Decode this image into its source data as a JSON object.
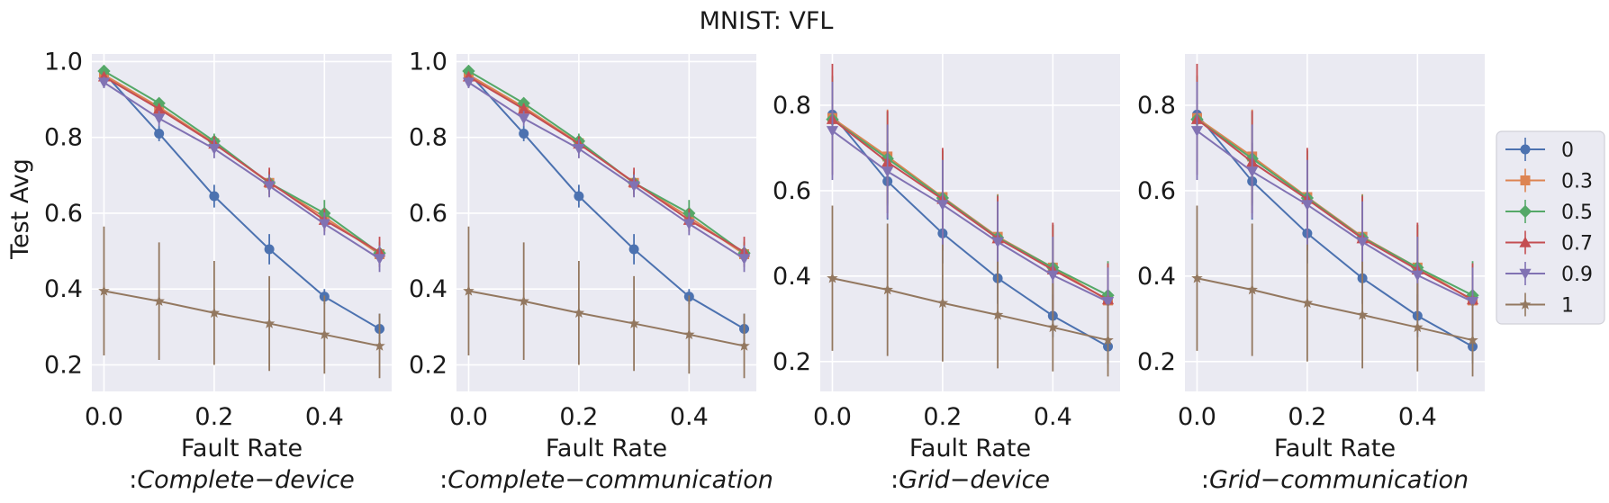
{
  "suptitle": "MNIST: VFL",
  "ylabel": "Test Avg",
  "legend": {
    "entries": [
      {
        "label": "0",
        "color": "#4c72b0",
        "marker": "circle"
      },
      {
        "label": "0.3",
        "color": "#dd8452",
        "marker": "square"
      },
      {
        "label": "0.5",
        "color": "#55a868",
        "marker": "diamond"
      },
      {
        "label": "0.7",
        "color": "#c44e52",
        "marker": "triangle-up"
      },
      {
        "label": "0.9",
        "color": "#8172b3",
        "marker": "triangle-down"
      },
      {
        "label": "1",
        "color": "#937860",
        "marker": "star"
      }
    ]
  },
  "chart_data": [
    {
      "type": "line",
      "xlabel": "Fault Rate",
      "subtitle_prefix": ":",
      "subtitle_italic": "Complete−device",
      "x": [
        0.0,
        0.1,
        0.2,
        0.3,
        0.4,
        0.5
      ],
      "xticks": [
        0.0,
        0.2,
        0.4
      ],
      "xtick_labels": [
        "0.0",
        "0.2",
        "0.4"
      ],
      "xlim": [
        -0.022,
        0.522
      ],
      "ylim": [
        0.13,
        1.02
      ],
      "yticks": [
        0.2,
        0.4,
        0.6,
        0.8,
        1.0
      ],
      "ytick_labels": [
        "0.2",
        "0.4",
        "0.6",
        "0.8",
        "1.0"
      ],
      "series": [
        {
          "name": "0",
          "values": [
            0.97,
            0.81,
            0.645,
            0.505,
            0.38,
            0.295
          ],
          "errors": [
            0.015,
            0.02,
            0.03,
            0.04,
            0.02,
            0.04
          ]
        },
        {
          "name": "0.3",
          "values": [
            0.965,
            0.88,
            0.785,
            0.68,
            0.59,
            0.492
          ],
          "errors": [
            0.01,
            0.015,
            0.02,
            0.03,
            0.025,
            0.03
          ]
        },
        {
          "name": "0.5",
          "values": [
            0.975,
            0.89,
            0.79,
            0.68,
            0.6,
            0.495
          ],
          "errors": [
            0.01,
            0.015,
            0.02,
            0.03,
            0.035,
            0.03
          ]
        },
        {
          "name": "0.7",
          "values": [
            0.96,
            0.875,
            0.783,
            0.682,
            0.582,
            0.498
          ],
          "errors": [
            0.01,
            0.015,
            0.02,
            0.038,
            0.03,
            0.04
          ]
        },
        {
          "name": "0.9",
          "values": [
            0.945,
            0.85,
            0.77,
            0.672,
            0.572,
            0.48
          ],
          "errors": [
            0.015,
            0.02,
            0.025,
            0.03,
            0.03,
            0.035
          ]
        },
        {
          "name": "1",
          "values": [
            0.395,
            0.368,
            0.337,
            0.309,
            0.28,
            0.25
          ],
          "errors": [
            0.17,
            0.155,
            0.137,
            0.125,
            0.103,
            0.085
          ]
        }
      ]
    },
    {
      "type": "line",
      "xlabel": "Fault Rate",
      "subtitle_prefix": ":",
      "subtitle_italic": "Complete−communication",
      "x": [
        0.0,
        0.1,
        0.2,
        0.3,
        0.4,
        0.5
      ],
      "xticks": [
        0.0,
        0.2,
        0.4
      ],
      "xtick_labels": [
        "0.0",
        "0.2",
        "0.4"
      ],
      "xlim": [
        -0.022,
        0.522
      ],
      "ylim": [
        0.13,
        1.02
      ],
      "yticks": [
        0.2,
        0.4,
        0.6,
        0.8,
        1.0
      ],
      "ytick_labels": [
        "0.2",
        "0.4",
        "0.6",
        "0.8",
        "1.0"
      ],
      "series": [
        {
          "name": "0",
          "values": [
            0.97,
            0.81,
            0.645,
            0.505,
            0.38,
            0.295
          ],
          "errors": [
            0.015,
            0.02,
            0.03,
            0.04,
            0.02,
            0.04
          ]
        },
        {
          "name": "0.3",
          "values": [
            0.965,
            0.88,
            0.785,
            0.68,
            0.59,
            0.492
          ],
          "errors": [
            0.01,
            0.015,
            0.02,
            0.03,
            0.025,
            0.03
          ]
        },
        {
          "name": "0.5",
          "values": [
            0.975,
            0.89,
            0.79,
            0.68,
            0.6,
            0.495
          ],
          "errors": [
            0.01,
            0.015,
            0.02,
            0.03,
            0.035,
            0.03
          ]
        },
        {
          "name": "0.7",
          "values": [
            0.96,
            0.875,
            0.783,
            0.682,
            0.582,
            0.498
          ],
          "errors": [
            0.01,
            0.015,
            0.02,
            0.038,
            0.03,
            0.04
          ]
        },
        {
          "name": "0.9",
          "values": [
            0.945,
            0.85,
            0.77,
            0.672,
            0.572,
            0.48
          ],
          "errors": [
            0.015,
            0.02,
            0.025,
            0.03,
            0.03,
            0.035
          ]
        },
        {
          "name": "1",
          "values": [
            0.395,
            0.368,
            0.337,
            0.309,
            0.28,
            0.25
          ],
          "errors": [
            0.17,
            0.155,
            0.137,
            0.125,
            0.103,
            0.085
          ]
        }
      ]
    },
    {
      "type": "line",
      "xlabel": "Fault Rate",
      "subtitle_prefix": ":",
      "subtitle_italic": "Grid−device",
      "x": [
        0.0,
        0.1,
        0.2,
        0.3,
        0.4,
        0.5
      ],
      "xticks": [
        0.0,
        0.2,
        0.4
      ],
      "xtick_labels": [
        "0.0",
        "0.2",
        "0.4"
      ],
      "xlim": [
        -0.022,
        0.522
      ],
      "ylim": [
        0.13,
        0.92
      ],
      "yticks": [
        0.2,
        0.4,
        0.6,
        0.8
      ],
      "ytick_labels": [
        "0.2",
        "0.4",
        "0.6",
        "0.8"
      ],
      "series": [
        {
          "name": "0",
          "values": [
            0.778,
            0.622,
            0.5,
            0.395,
            0.307,
            0.235
          ],
          "errors": [
            0.04,
            0.09,
            0.07,
            0.06,
            0.05,
            0.04
          ]
        },
        {
          "name": "0.3",
          "values": [
            0.77,
            0.68,
            0.585,
            0.492,
            0.42,
            0.343
          ],
          "errors": [
            0.1,
            0.11,
            0.11,
            0.1,
            0.1,
            0.08
          ]
        },
        {
          "name": "0.5",
          "values": [
            0.767,
            0.675,
            0.583,
            0.49,
            0.42,
            0.355
          ],
          "errors": [
            0.1,
            0.11,
            0.11,
            0.1,
            0.1,
            0.08
          ]
        },
        {
          "name": "0.7",
          "values": [
            0.767,
            0.667,
            0.58,
            0.488,
            0.415,
            0.345
          ],
          "errors": [
            0.13,
            0.12,
            0.12,
            0.1,
            0.11,
            0.085
          ]
        },
        {
          "name": "0.9",
          "values": [
            0.74,
            0.645,
            0.567,
            0.48,
            0.402,
            0.34
          ],
          "errors": [
            0.115,
            0.11,
            0.105,
            0.095,
            0.09,
            0.08
          ]
        },
        {
          "name": "1",
          "values": [
            0.395,
            0.368,
            0.337,
            0.309,
            0.28,
            0.25
          ],
          "errors": [
            0.17,
            0.155,
            0.137,
            0.125,
            0.103,
            0.085
          ]
        }
      ]
    },
    {
      "type": "line",
      "xlabel": "Fault Rate",
      "subtitle_prefix": ":",
      "subtitle_italic": "Grid−communication",
      "x": [
        0.0,
        0.1,
        0.2,
        0.3,
        0.4,
        0.5
      ],
      "xticks": [
        0.0,
        0.2,
        0.4
      ],
      "xtick_labels": [
        "0.0",
        "0.2",
        "0.4"
      ],
      "xlim": [
        -0.022,
        0.522
      ],
      "ylim": [
        0.13,
        0.92
      ],
      "yticks": [
        0.2,
        0.4,
        0.6,
        0.8
      ],
      "ytick_labels": [
        "0.2",
        "0.4",
        "0.6",
        "0.8"
      ],
      "series": [
        {
          "name": "0",
          "values": [
            0.778,
            0.622,
            0.5,
            0.395,
            0.307,
            0.235
          ],
          "errors": [
            0.04,
            0.09,
            0.07,
            0.06,
            0.05,
            0.04
          ]
        },
        {
          "name": "0.3",
          "values": [
            0.77,
            0.68,
            0.585,
            0.492,
            0.42,
            0.343
          ],
          "errors": [
            0.1,
            0.11,
            0.11,
            0.1,
            0.1,
            0.08
          ]
        },
        {
          "name": "0.5",
          "values": [
            0.767,
            0.675,
            0.583,
            0.49,
            0.42,
            0.355
          ],
          "errors": [
            0.1,
            0.11,
            0.11,
            0.1,
            0.1,
            0.08
          ]
        },
        {
          "name": "0.7",
          "values": [
            0.767,
            0.667,
            0.58,
            0.488,
            0.415,
            0.345
          ],
          "errors": [
            0.13,
            0.12,
            0.12,
            0.1,
            0.11,
            0.085
          ]
        },
        {
          "name": "0.9",
          "values": [
            0.74,
            0.645,
            0.567,
            0.48,
            0.402,
            0.34
          ],
          "errors": [
            0.115,
            0.11,
            0.105,
            0.095,
            0.09,
            0.08
          ]
        },
        {
          "name": "1",
          "values": [
            0.395,
            0.368,
            0.337,
            0.309,
            0.28,
            0.25
          ],
          "errors": [
            0.17,
            0.155,
            0.137,
            0.125,
            0.103,
            0.085
          ]
        }
      ]
    }
  ]
}
